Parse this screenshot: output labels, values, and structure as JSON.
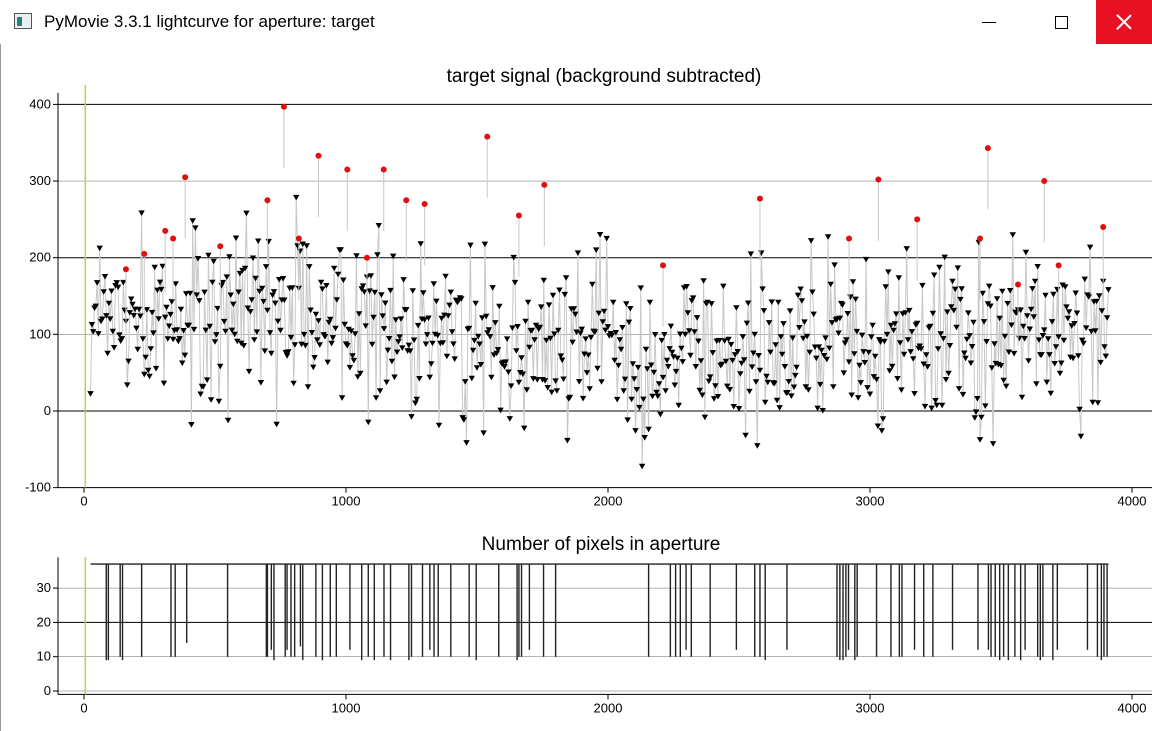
{
  "window": {
    "title": "PyMovie 3.3.1 lightcurve for aperture: target",
    "icon": "pymovie-app-icon"
  },
  "colors": {
    "close_button": "#e81123",
    "series_marker": "#000000",
    "highlight_marker": "#e01010",
    "connect_line": "#c8c8c8",
    "vertical_marker": "#c8c864"
  },
  "chart_data": [
    {
      "type": "scatter",
      "title": "target signal (background subtracted)",
      "xlabel": "",
      "ylabel": "",
      "xlim": [
        -90,
        4050
      ],
      "ylim": [
        -100,
        415
      ],
      "xticks": [
        0,
        1000,
        2000,
        3000,
        4000
      ],
      "yticks": [
        -100,
        0,
        100,
        200,
        300,
        400
      ],
      "grid": true,
      "vertical_marker_x": 5,
      "series": [
        {
          "marker": "triangle-down",
          "color": "#000000",
          "x_range": [
            25,
            3910
          ],
          "step": 5,
          "typical_range": [
            -60,
            300
          ],
          "center": 110
        },
        {
          "marker": "circle",
          "color": "#e01010",
          "points": [
            [
              386,
              305
            ],
            [
              763,
              397
            ],
            [
              895,
              333
            ],
            [
              1005,
              315
            ],
            [
              1144,
              315
            ],
            [
              1539,
              358
            ],
            [
              1757,
              295
            ],
            [
              3032,
              302
            ],
            [
              3450,
              343
            ],
            [
              3665,
              300
            ],
            [
              160,
              185
            ],
            [
              230,
              205
            ],
            [
              310,
              235
            ],
            [
              340,
              225
            ],
            [
              520,
              215
            ],
            [
              700,
              275
            ],
            [
              820,
              225
            ],
            [
              1080,
              200
            ],
            [
              1230,
              275
            ],
            [
              1300,
              270
            ],
            [
              1660,
              255
            ],
            [
              2210,
              190
            ],
            [
              2580,
              277
            ],
            [
              2920,
              225
            ],
            [
              3180,
              250
            ],
            [
              3420,
              225
            ],
            [
              3565,
              165
            ],
            [
              3720,
              190
            ],
            [
              3890,
              240
            ]
          ]
        }
      ]
    },
    {
      "type": "line",
      "title": "Number of pixels in aperture",
      "xlabel": "",
      "ylabel": "",
      "xlim": [
        -90,
        4050
      ],
      "ylim": [
        -1,
        39
      ],
      "xticks": [
        0,
        1000,
        2000,
        3000,
        4000
      ],
      "yticks": [
        0,
        10,
        20,
        30
      ],
      "grid": true,
      "baseline": 37,
      "dips": [
        [
          85,
          9
        ],
        [
          93,
          9
        ],
        [
          138,
          10
        ],
        [
          147,
          9
        ],
        [
          220,
          10
        ],
        [
          332,
          10
        ],
        [
          348,
          10
        ],
        [
          392,
          14
        ],
        [
          548,
          10
        ],
        [
          696,
          10
        ],
        [
          700,
          10
        ],
        [
          715,
          12
        ],
        [
          725,
          9
        ],
        [
          768,
          10
        ],
        [
          775,
          12
        ],
        [
          790,
          10
        ],
        [
          804,
          10
        ],
        [
          826,
          13
        ],
        [
          835,
          9
        ],
        [
          885,
          10
        ],
        [
          910,
          9
        ],
        [
          940,
          10
        ],
        [
          963,
          10
        ],
        [
          1015,
          12
        ],
        [
          1060,
          9
        ],
        [
          1085,
          10
        ],
        [
          1108,
          9
        ],
        [
          1145,
          10
        ],
        [
          1170,
          9
        ],
        [
          1240,
          9
        ],
        [
          1250,
          10
        ],
        [
          1292,
          10
        ],
        [
          1320,
          12
        ],
        [
          1336,
          10
        ],
        [
          1352,
          10
        ],
        [
          1400,
          10
        ],
        [
          1470,
          10
        ],
        [
          1497,
          9
        ],
        [
          1583,
          10
        ],
        [
          1653,
          9
        ],
        [
          1660,
          10
        ],
        [
          1670,
          10
        ],
        [
          1700,
          12
        ],
        [
          1754,
          10
        ],
        [
          1800,
          10
        ],
        [
          2155,
          10
        ],
        [
          2238,
          10
        ],
        [
          2258,
          10
        ],
        [
          2276,
          10
        ],
        [
          2298,
          12
        ],
        [
          2318,
          10
        ],
        [
          2390,
          10
        ],
        [
          2490,
          12
        ],
        [
          2560,
          10
        ],
        [
          2580,
          10
        ],
        [
          2600,
          9
        ],
        [
          2683,
          12
        ],
        [
          2874,
          10
        ],
        [
          2885,
          9
        ],
        [
          2897,
          9
        ],
        [
          2908,
          10
        ],
        [
          2918,
          12
        ],
        [
          2942,
          9
        ],
        [
          2951,
          10
        ],
        [
          3025,
          10
        ],
        [
          3080,
          10
        ],
        [
          3112,
          10
        ],
        [
          3122,
          10
        ],
        [
          3170,
          12
        ],
        [
          3205,
          10
        ],
        [
          3240,
          10
        ],
        [
          3315,
          12
        ],
        [
          3412,
          12
        ],
        [
          3452,
          12
        ],
        [
          3462,
          10
        ],
        [
          3478,
          10
        ],
        [
          3495,
          9
        ],
        [
          3510,
          10
        ],
        [
          3528,
          9
        ],
        [
          3553,
          10
        ],
        [
          3575,
          9
        ],
        [
          3592,
          12
        ],
        [
          3640,
          10
        ],
        [
          3650,
          9
        ],
        [
          3660,
          10
        ],
        [
          3698,
          9
        ],
        [
          3715,
          12
        ],
        [
          3830,
          12
        ],
        [
          3868,
          10
        ],
        [
          3883,
          9
        ],
        [
          3893,
          10
        ],
        [
          3905,
          10
        ]
      ]
    }
  ]
}
